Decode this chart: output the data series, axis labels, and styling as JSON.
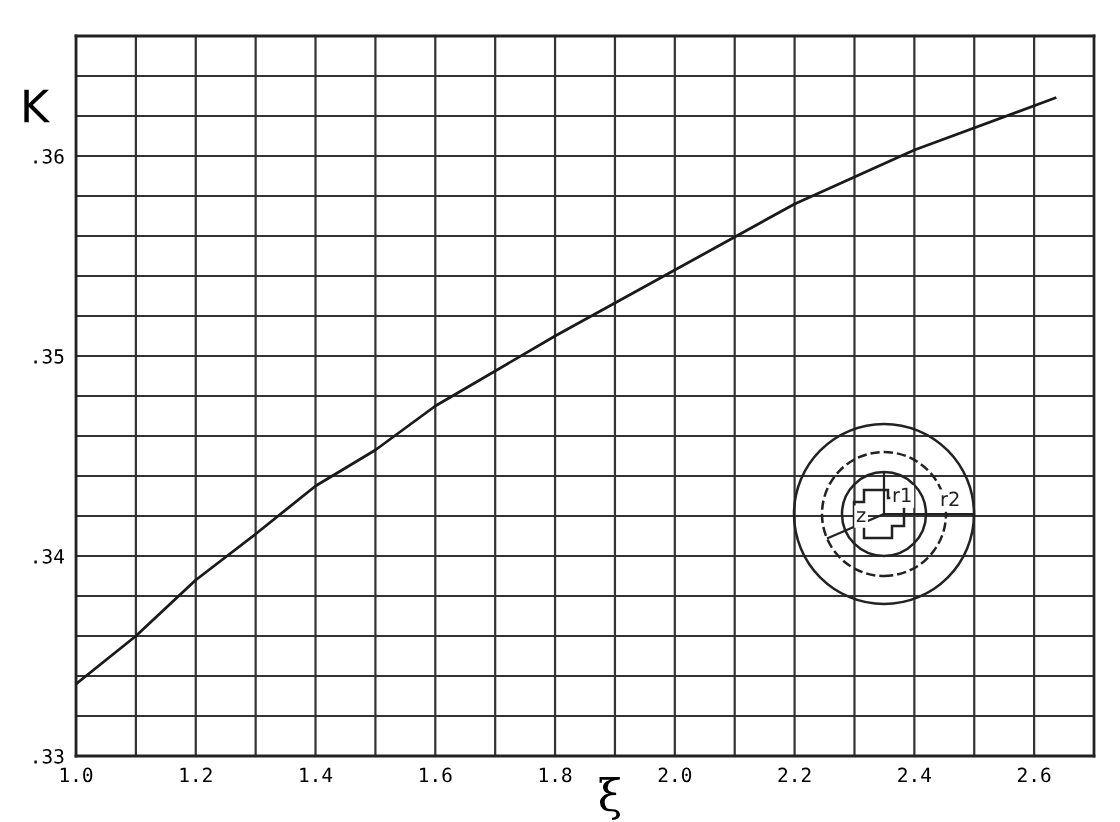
{
  "chart_data": {
    "type": "line",
    "xlabel": "ξ",
    "ylabel": "K",
    "x": [
      1.0,
      1.1,
      1.2,
      1.3,
      1.4,
      1.5,
      1.6,
      1.8,
      2.0,
      2.2,
      2.4,
      2.635
    ],
    "series": [
      {
        "color": "#1a1a1a",
        "values": [
          0.3336,
          0.336,
          0.3388,
          0.3411,
          0.3435,
          0.3453,
          0.3475,
          0.351,
          0.3543,
          0.3576,
          0.3603,
          0.3629
        ]
      }
    ],
    "xlim": [
      1.0,
      2.7
    ],
    "ylim": [
      0.33,
      0.366
    ],
    "xticks": [
      {
        "value": 1.0,
        "label": "1.0"
      },
      {
        "value": 1.1,
        "label": null
      },
      {
        "value": 1.2,
        "label": "1.2"
      },
      {
        "value": 1.3,
        "label": null
      },
      {
        "value": 1.4,
        "label": "1.4"
      },
      {
        "value": 1.5,
        "label": null
      },
      {
        "value": 1.6,
        "label": "1.6"
      },
      {
        "value": 1.7,
        "label": null
      },
      {
        "value": 1.8,
        "label": "1.8"
      },
      {
        "value": 1.9,
        "label": null
      },
      {
        "value": 2.0,
        "label": "2.0"
      },
      {
        "value": 2.1,
        "label": null
      },
      {
        "value": 2.2,
        "label": "2.2"
      },
      {
        "value": 2.3,
        "label": null
      },
      {
        "value": 2.4,
        "label": "2.4"
      },
      {
        "value": 2.5,
        "label": null
      },
      {
        "value": 2.6,
        "label": "2.6"
      }
    ],
    "yticks": [
      {
        "value": 0.33,
        "label": ".33"
      },
      {
        "value": 0.332,
        "label": null
      },
      {
        "value": 0.334,
        "label": null
      },
      {
        "value": 0.336,
        "label": null
      },
      {
        "value": 0.338,
        "label": null
      },
      {
        "value": 0.34,
        "label": ".34"
      },
      {
        "value": 0.342,
        "label": null
      },
      {
        "value": 0.344,
        "label": null
      },
      {
        "value": 0.346,
        "label": null
      },
      {
        "value": 0.348,
        "label": null
      },
      {
        "value": 0.35,
        "label": ".35"
      },
      {
        "value": 0.352,
        "label": null
      },
      {
        "value": 0.354,
        "label": null
      },
      {
        "value": 0.356,
        "label": null
      },
      {
        "value": 0.358,
        "label": null
      },
      {
        "value": 0.36,
        "label": ".36"
      },
      {
        "value": 0.362,
        "label": null
      },
      {
        "value": 0.364,
        "label": null
      }
    ],
    "grid": true,
    "marker": "none",
    "line_style": "solid",
    "annotations": [
      "r1",
      "r2",
      "z"
    ]
  }
}
